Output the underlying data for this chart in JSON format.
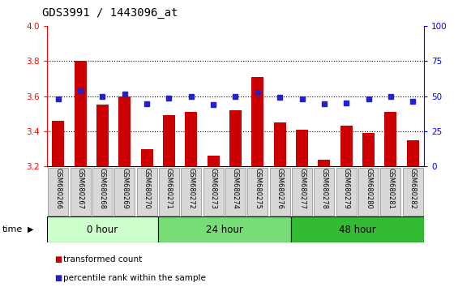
{
  "title": "GDS3991 / 1443096_at",
  "samples": [
    "GSM680266",
    "GSM680267",
    "GSM680268",
    "GSM680269",
    "GSM680270",
    "GSM680271",
    "GSM680272",
    "GSM680273",
    "GSM680274",
    "GSM680275",
    "GSM680276",
    "GSM680277",
    "GSM680278",
    "GSM680279",
    "GSM680280",
    "GSM680281",
    "GSM680282"
  ],
  "bar_values": [
    3.46,
    3.8,
    3.55,
    3.6,
    3.3,
    3.49,
    3.51,
    3.26,
    3.52,
    3.71,
    3.45,
    3.41,
    3.24,
    3.43,
    3.39,
    3.51,
    3.35
  ],
  "blue_values": [
    3.585,
    3.63,
    3.6,
    3.61,
    3.555,
    3.59,
    3.6,
    3.55,
    3.6,
    3.62,
    3.595,
    3.585,
    3.555,
    3.56,
    3.585,
    3.6,
    3.57
  ],
  "bar_color": "#cc0000",
  "blue_color": "#2222cc",
  "ylim_left": [
    3.2,
    4.0
  ],
  "ylim_right": [
    0,
    100
  ],
  "yticks_left": [
    3.2,
    3.4,
    3.6,
    3.8,
    4.0
  ],
  "yticks_right": [
    0,
    25,
    50,
    75,
    100
  ],
  "groups": [
    {
      "label": "0 hour",
      "start": 0,
      "end": 5,
      "color": "#ccffcc"
    },
    {
      "label": "24 hour",
      "start": 5,
      "end": 11,
      "color": "#77dd77"
    },
    {
      "label": "48 hour",
      "start": 11,
      "end": 17,
      "color": "#33bb33"
    }
  ],
  "bar_base": 3.2,
  "legend_bar_label": "transformed count",
  "legend_blue_label": "percentile rank within the sample",
  "background_color": "#d8d8d8",
  "title_fontsize": 10,
  "grid_dotted_color": "#000000"
}
